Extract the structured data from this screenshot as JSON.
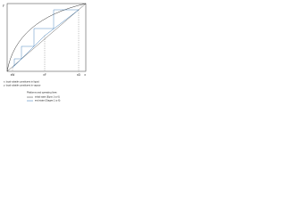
{
  "axes": {
    "y_label": "y",
    "x_label": "x",
    "x_ticks": [
      "xW",
      "xF",
      "xD"
    ]
  },
  "legend": [
    "x: local volatile constituent in liquid",
    "y: local volatile constituent in vapour"
  ],
  "note": {
    "title": "Platforms and operating lines",
    "lines": [
      "initial state (Eqns 1 to 6)",
      "end state (Stages 1 to 6)"
    ]
  }
}
